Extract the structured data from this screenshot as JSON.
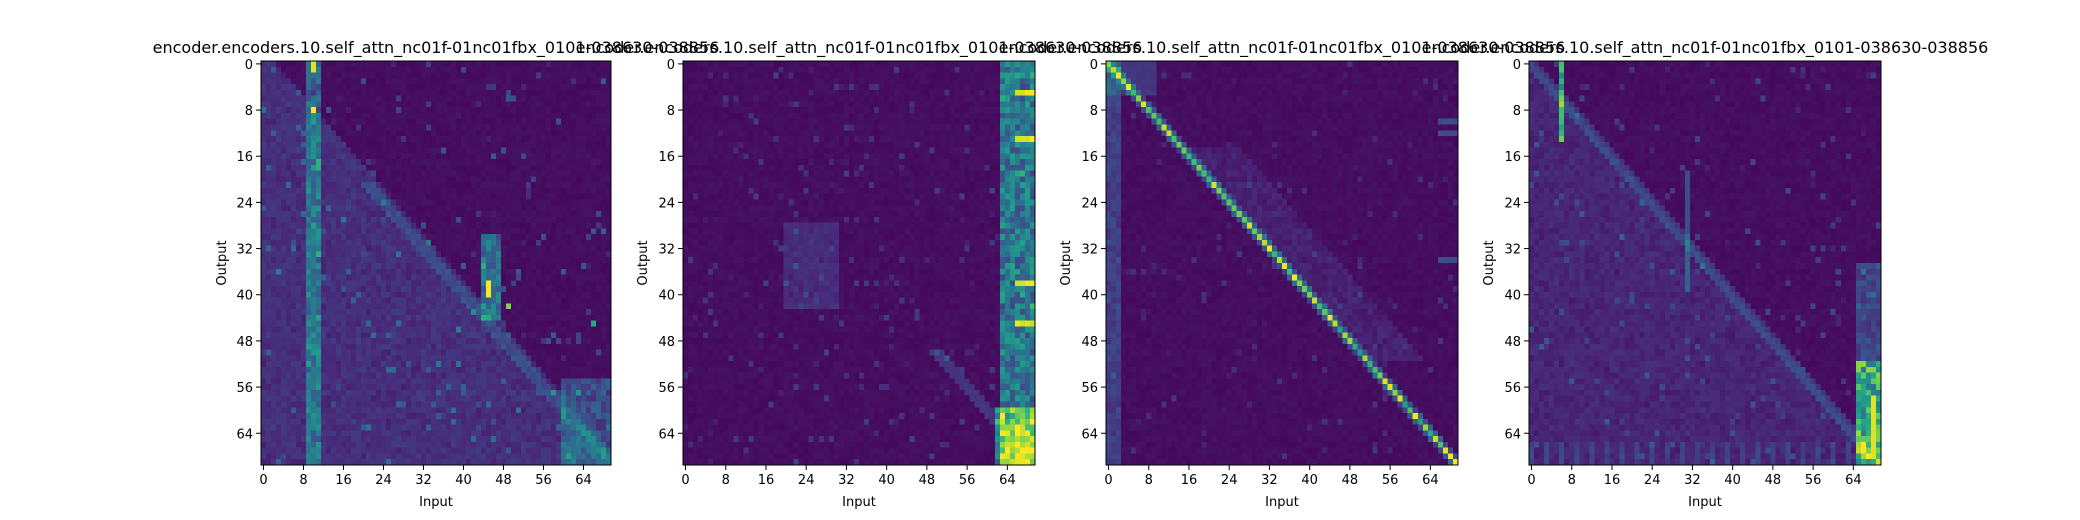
{
  "figure": {
    "background": "#ffffff",
    "colormap": "viridis",
    "colormap_stops": [
      "#440154",
      "#482878",
      "#3e4989",
      "#31688e",
      "#26828e",
      "#1f9e89",
      "#35b779",
      "#6ece58",
      "#b5de2b",
      "#fde725"
    ]
  },
  "chart_data": [
    {
      "type": "heatmap",
      "title": "encoder.encoders.10.self_attn_nc01f-01nc01fbx_0101-038630-038856",
      "xlabel": "Input",
      "ylabel": "Output",
      "xticks": [
        0,
        8,
        16,
        24,
        32,
        40,
        48,
        56,
        64
      ],
      "yticks": [
        0,
        8,
        16,
        24,
        32,
        40,
        48,
        56,
        64
      ],
      "shape": [
        70,
        70
      ],
      "pattern": "lower-triangular attention; strong columns near inputs 9-12 and 45-47; peak at input 45, outputs 38-40",
      "value_range": [
        0,
        1
      ]
    },
    {
      "type": "heatmap",
      "title": "encoder.encoders.10.self_attn_nc01f-01nc01fbx_0101-038630-038856",
      "xlabel": "Input",
      "ylabel": "Output",
      "xticks": [
        0,
        8,
        16,
        24,
        32,
        40,
        48,
        56,
        64
      ],
      "yticks": [
        0,
        8,
        16,
        24,
        32,
        40,
        48,
        56,
        64
      ],
      "shape": [
        70,
        70
      ],
      "pattern": "attention concentrated on last inputs 64-69 for all outputs; faint diagonal in lower rows",
      "value_range": [
        0,
        1
      ]
    },
    {
      "type": "heatmap",
      "title": "encoder.encoders.10.self_attn_nc01f-01nc01fbx_0101-038630-038856",
      "xlabel": "Input",
      "ylabel": "Output",
      "xticks": [
        0,
        8,
        16,
        24,
        32,
        40,
        48,
        56,
        64
      ],
      "yticks": [
        0,
        8,
        16,
        24,
        32,
        40,
        48,
        56,
        64
      ],
      "shape": [
        70,
        70
      ],
      "pattern": "sharp main diagonal (output attends to same input position)",
      "value_range": [
        0,
        1
      ]
    },
    {
      "type": "heatmap",
      "title": "encoder.encoders.10.self_attn_nc01f-01nc01fbx_0101-038630-038856",
      "xlabel": "Input",
      "ylabel": "Output",
      "xticks": [
        0,
        8,
        16,
        24,
        32,
        40,
        48,
        56,
        64
      ],
      "yticks": [
        0,
        8,
        16,
        24,
        32,
        40,
        48,
        56,
        64
      ],
      "shape": [
        70,
        70
      ],
      "pattern": "faint lower-triangular band; strong block at inputs 66-69 for outputs 52-68; column at input 6",
      "value_range": [
        0,
        1
      ]
    }
  ]
}
